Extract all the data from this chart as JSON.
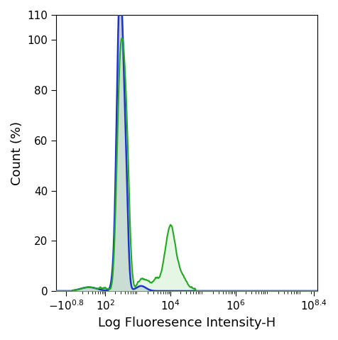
{
  "xlabel": "Log Fluoresence Intensity-H",
  "ylabel": "Count (%)",
  "ylim": [
    0,
    110
  ],
  "blue_color": "#1a35cc",
  "green_color": "#22aa22",
  "fill_color_blue": "#c8ccdf",
  "fill_color_green": "#cceecc",
  "blue_linewidth": 1.8,
  "green_linewidth": 1.5,
  "label_fontsize": 13,
  "tick_fontsize": 11,
  "yticks": [
    0,
    20,
    40,
    60,
    80,
    100,
    110
  ],
  "ytick_labels": [
    "0",
    "20",
    "40",
    "60",
    "80",
    "100",
    "110"
  ],
  "xtick_labels": [
    "$-10^{0.8}$",
    "$10^2$",
    "$10^4$",
    "$10^6$",
    "$10^{8.4}$"
  ]
}
